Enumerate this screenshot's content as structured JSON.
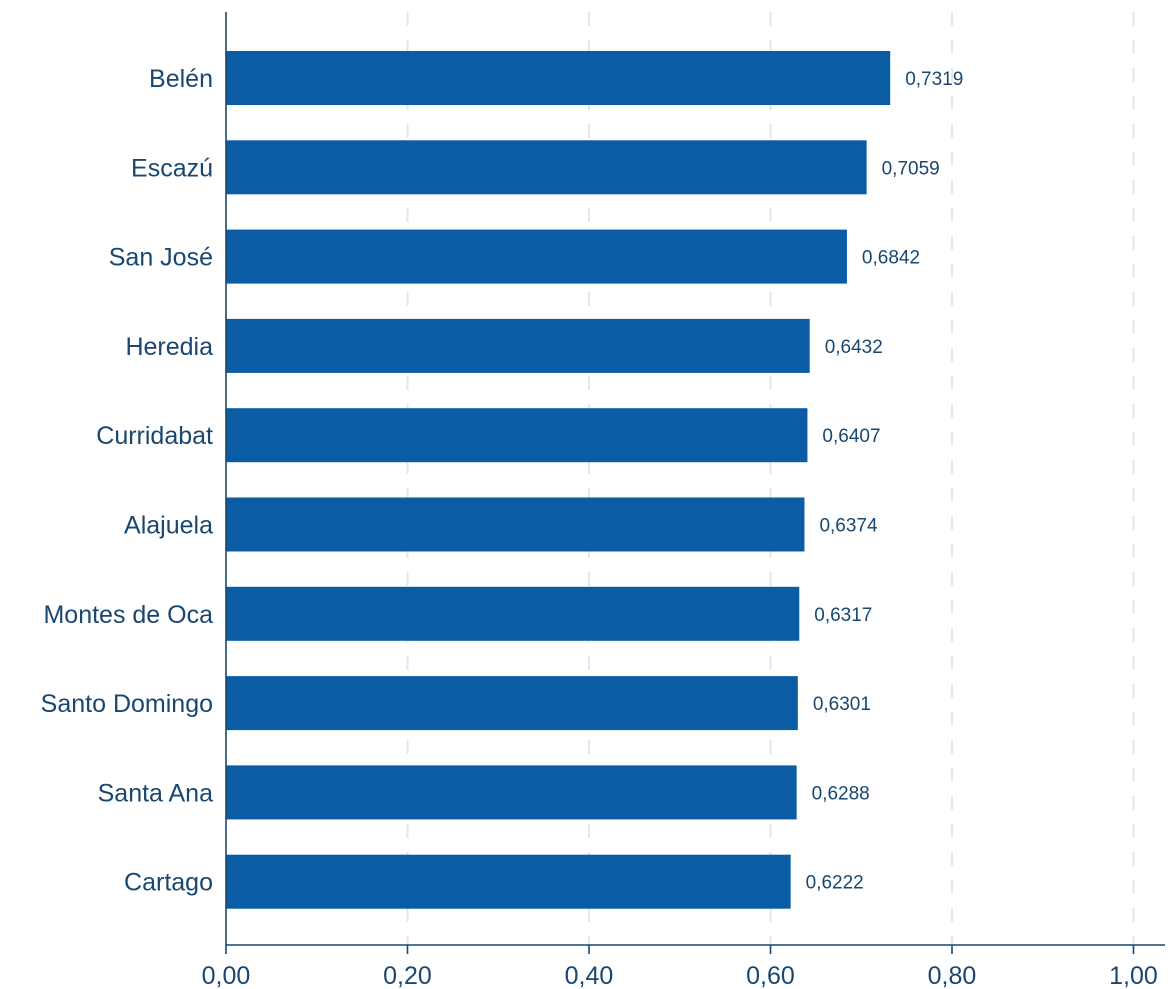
{
  "chart_data": {
    "type": "bar",
    "orientation": "horizontal",
    "categories": [
      "Belén",
      "Escazú",
      "San José",
      "Heredia",
      "Curridabat",
      "Alajuela",
      "Montes de Oca",
      "Santo Domingo",
      "Santa Ana",
      "Cartago"
    ],
    "values": [
      0.7319,
      0.7059,
      0.6842,
      0.6432,
      0.6407,
      0.6374,
      0.6317,
      0.6301,
      0.6288,
      0.6222
    ],
    "value_labels": [
      "0,7319",
      "0,7059",
      "0,6842",
      "0,6432",
      "0,6407",
      "0,6374",
      "0,6317",
      "0,6301",
      "0,6288",
      "0,6222"
    ],
    "x_ticks": [
      0,
      0.2,
      0.4,
      0.6,
      0.8,
      1.0
    ],
    "x_tick_labels": [
      "0,00",
      "0,20",
      "0,40",
      "0,60",
      "0,80",
      "1,00"
    ],
    "xlim": [
      0,
      1.03
    ],
    "title": "",
    "xlabel": "",
    "ylabel": "",
    "grid": "vertical dashed",
    "colors": {
      "bar": "#0a5ca4",
      "text": "#1a476f",
      "axis": "#1a476f",
      "grid": "#e6e6e6"
    }
  }
}
